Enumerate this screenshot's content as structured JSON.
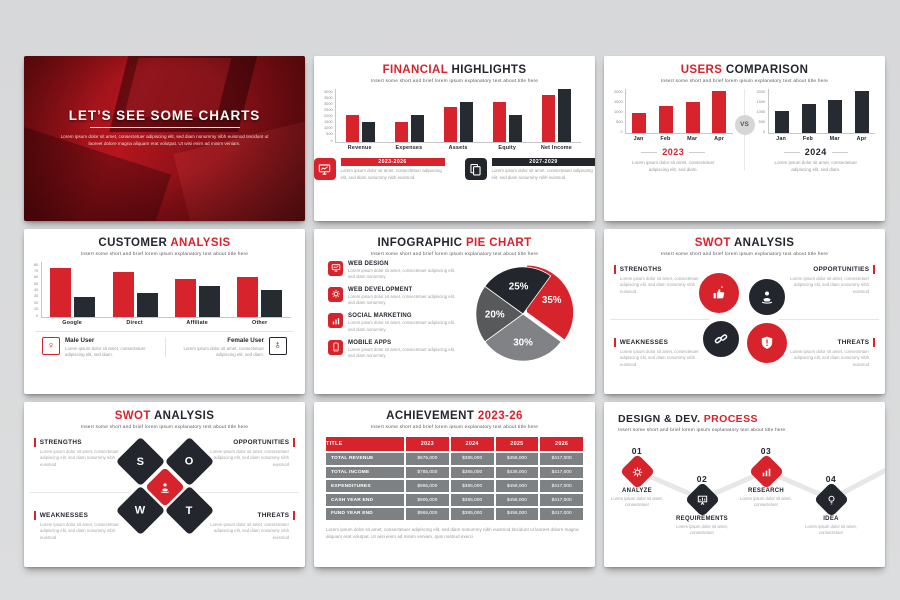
{
  "colors": {
    "accent_red": "#d7232b",
    "dark": "#23262d",
    "bar_dark": "#262a31",
    "gray": "#808285",
    "mid_gray": "#58595b",
    "page_bg": "#d9dadb"
  },
  "slide1": {
    "title": "LET’S SEE SOME CHARTS",
    "subtitle": "Lorem ipsum dolor sit amet, consectetuer adipiscing elit, sed diam nonummy nibh euismod tincidunt ut laoreet dolore magna aliquam erat volutpat. Ut wisi enim ad minim veniam."
  },
  "slide2": {
    "title_accent": "FINANCIAL",
    "title_rest": " HIGHLIGHTS",
    "subtitle": "Insert some short and brief lorem ipsum explanatory text about title here",
    "legend": [
      {
        "period": "2023-2026",
        "icon": "monitor-chart-icon",
        "text": "Lorem ipsum dolor sit amet, consectetuer adipiscing elit, sed diam nonummy nibh euismod"
      },
      {
        "period": "2027-2029",
        "icon": "documents-icon",
        "text": "Lorem ipsum dolor sit amet, consectetuer adipiscing elit, sed diam nonummy nibh euismod"
      }
    ]
  },
  "slide3": {
    "title_accent": "USERS",
    "title_rest": " COMPARISON",
    "subtitle": "Insert some short and brief lorem ipsum explanatory text about title here",
    "vs": "VS",
    "left": {
      "year": "2023",
      "text": "Lorem ipsum dolor sit amet, consectetuer adipiscing elit, sed diam."
    },
    "right": {
      "year": "2024",
      "text": "Lorem ipsum dolor sit amet, consectetuer adipiscing elit, sed diam."
    }
  },
  "slide4": {
    "title_rest": "CUSTOMER ",
    "title_accent": "ANALYSIS",
    "subtitle": "Insert some short and brief lorem ipsum explanatory text about title here",
    "legend_left": {
      "label": "Male User",
      "text": "Lorem ipsum dolor sit amet, consectetuer adipiscing elit, sed diam."
    },
    "legend_right": {
      "label": "Female User",
      "text": "Lorem ipsum dolor sit amet, consectetuer adipiscing elit, sed diam."
    }
  },
  "slide5": {
    "title_rest": "INFOGRAPHIC ",
    "title_accent": "PIE CHART",
    "subtitle": "Insert some short and brief lorem ipsum explanatory text about title here",
    "items": [
      {
        "title": "WEB DESIGN",
        "icon": "monitor-chart-icon",
        "text": "Lorem ipsum dolor sit amet, consectetuer adipiscing elit, sed diam nonummy."
      },
      {
        "title": "WEB DEVELOPMENT",
        "icon": "gear-icon",
        "text": "Lorem ipsum dolor sit amet, consectetuer adipiscing elit, sed diam nonummy."
      },
      {
        "title": "SOCIAL MARKETING",
        "icon": "bar-chart-icon",
        "text": "Lorem ipsum dolor sit amet, consectetuer adipiscing elit, sed diam nonummy."
      },
      {
        "title": "MOBILE APPS",
        "icon": "mobile-icon",
        "text": "Lorem ipsum dolor sit amet, consectetuer adipiscing elit, sed diam nonummy."
      }
    ]
  },
  "slide6": {
    "title_accent": "SWOT",
    "title_rest": " ANALYSIS",
    "subtitle": "Insert some short and brief lorem ipsum explanatory text about title here",
    "quadrants": [
      {
        "label": "STRENGTHS",
        "text": "Lorem ipsum dolor sit amet, consectetuer adipiscing elit, sed diam nonummy nibh euismod"
      },
      {
        "label": "OPPORTUNITIES",
        "text": "Lorem ipsum dolor sit amet, consectetuer adipiscing elit, sed diam nonummy nibh euismod"
      },
      {
        "label": "WEAKNESSES",
        "text": "Lorem ipsum dolor sit amet, consectetuer adipiscing elit, sed diam nonummy nibh euismod"
      },
      {
        "label": "THREATS",
        "text": "Lorem ipsum dolor sit amet, consectetuer adipiscing elit, sed diam nonummy nibh euismod"
      }
    ]
  },
  "slide7": {
    "title_accent": "SWOT",
    "title_rest": " ANALYSIS",
    "subtitle": "Insert some short and brief lorem ipsum explanatory text about title here",
    "letters": [
      "S",
      "O",
      "W",
      "T"
    ],
    "quadrants": [
      {
        "label": "STRENGTHS",
        "text": "Lorem ipsum dolor sit amet, consectetuer adipiscing elit, sed diam nonummy nibh euismod"
      },
      {
        "label": "OPPORTUNITIES",
        "text": "Lorem ipsum dolor sit amet, consectetuer adipiscing elit, sed diam nonummy nibh euismod"
      },
      {
        "label": "WEAKNESSES",
        "text": "Lorem ipsum dolor sit amet, consectetuer adipiscing elit, sed diam nonummy nibh euismod"
      },
      {
        "label": "THREATS",
        "text": "Lorem ipsum dolor sit amet, consectetuer adipiscing elit, sed diam nonummy nibh euismod"
      }
    ]
  },
  "slide8": {
    "title_rest": "ACHIEVEMENT ",
    "title_accent": "2023-26",
    "subtitle": "Insert some short and brief lorem ipsum explanatory text about title here",
    "footnote": "Lorem ipsum dolor sit amet, consectetuer adipiscing elit, sed diam nonummy nibh euismod tincidunt ut laoreet dolore magna aliquam erat volutpat. Ut wisi enim ad minim veniam, quis nostrud exerci"
  },
  "slide9": {
    "title_rest": "DESIGN & DEV. ",
    "title_accent": "PROCESS",
    "subtitle": "Insert some short and brief lorem ipsum explanatory text about title here",
    "steps": [
      {
        "num": "01",
        "label": "ANALYZE",
        "icon": "gear-icon",
        "text": "Lorem ipsum dolor sit amet, consectetuer"
      },
      {
        "num": "02",
        "label": "REQUIREMENTS",
        "icon": "presentation-chart-icon",
        "text": "Lorem ipsum dolor sit amet, consectetuer"
      },
      {
        "num": "03",
        "label": "RESEARCH",
        "icon": "bar-chart-icon",
        "text": "Lorem ipsum dolor sit amet, consectetuer"
      },
      {
        "num": "04",
        "label": "IDEA",
        "icon": "bulb-icon",
        "text": "Lorem ipsum dolor sit amet, consectetuer"
      }
    ]
  },
  "chart_data": [
    {
      "id": "financial",
      "type": "bar",
      "title": "FINANCIAL HIGHLIGHTS",
      "categories": [
        "Revenue",
        "Expenses",
        "Assets",
        "Equity",
        "Net Income"
      ],
      "series": [
        {
          "name": "2023-2026",
          "color": "#d7232b",
          "values": [
            2000,
            1500,
            2600,
            3000,
            3500
          ]
        },
        {
          "name": "2027-2029",
          "color": "#262a31",
          "values": [
            1500,
            2000,
            3000,
            2000,
            4000
          ]
        }
      ],
      "ylim": [
        0,
        4000
      ],
      "yticks": [
        0,
        500,
        1000,
        1500,
        2000,
        2500,
        3000,
        3500,
        4000
      ],
      "legend_position": "bottom"
    },
    {
      "id": "users2023",
      "type": "bar",
      "title": "2023",
      "categories": [
        "Jan",
        "Feb",
        "Mar",
        "Apr"
      ],
      "series": [
        {
          "name": "2023",
          "color": "#d7232b",
          "values": [
            900,
            1200,
            1400,
            1900
          ]
        }
      ],
      "ylim": [
        0,
        2000
      ],
      "yticks": [
        0,
        500,
        1000,
        1500,
        2000
      ]
    },
    {
      "id": "users2024",
      "type": "bar",
      "title": "2024",
      "categories": [
        "Jan",
        "Feb",
        "Mar",
        "Apr"
      ],
      "series": [
        {
          "name": "2024",
          "color": "#262a31",
          "values": [
            1000,
            1300,
            1500,
            1900
          ]
        }
      ],
      "ylim": [
        0,
        2000
      ],
      "yticks": [
        0,
        500,
        1000,
        1500,
        2000
      ]
    },
    {
      "id": "customer",
      "type": "bar",
      "title": "CUSTOMER ANALYSIS",
      "categories": [
        "Google",
        "Direct",
        "Affiliate",
        "Other"
      ],
      "series": [
        {
          "name": "Male User",
          "color": "#d7232b",
          "values": [
            70,
            65,
            54,
            58
          ]
        },
        {
          "name": "Female User",
          "color": "#262a31",
          "values": [
            29,
            34,
            44,
            39
          ]
        }
      ],
      "ylim": [
        0,
        80
      ],
      "yticks": [
        0,
        10,
        20,
        30,
        40,
        50,
        60,
        70,
        80
      ]
    },
    {
      "id": "pie",
      "type": "pie",
      "title": "INFOGRAPHIC PIE CHART",
      "slices": [
        {
          "label": "35%",
          "value": 35,
          "color": "#d7232b",
          "explode": true
        },
        {
          "label": "30%",
          "value": 30,
          "color": "#808285"
        },
        {
          "label": "20%",
          "value": 20,
          "color": "#58595b"
        },
        {
          "label": "25%",
          "value": 25,
          "color": "#23262d"
        }
      ]
    },
    {
      "id": "achievement",
      "type": "table",
      "title": "ACHIEVEMENT 2023-26",
      "columns": [
        "TITLE",
        "2023",
        "2024",
        "2025",
        "2026"
      ],
      "rows": [
        [
          "TOTAL REVENUE",
          "$675,000",
          "$385,000",
          "$456,000",
          "$417,000"
        ],
        [
          "TOTAL INCOME",
          "$785,000",
          "$365,000",
          "$436,000",
          "$417,000"
        ],
        [
          "EXPENDITURES",
          "$965,000",
          "$385,000",
          "$456,000",
          "$417,000"
        ],
        [
          "CASH YEAR END",
          "$905,000",
          "$385,000",
          "$456,000",
          "$417,000"
        ],
        [
          "FUND YEAR END",
          "$965,000",
          "$385,000",
          "$456,000",
          "$417,000"
        ]
      ]
    }
  ]
}
